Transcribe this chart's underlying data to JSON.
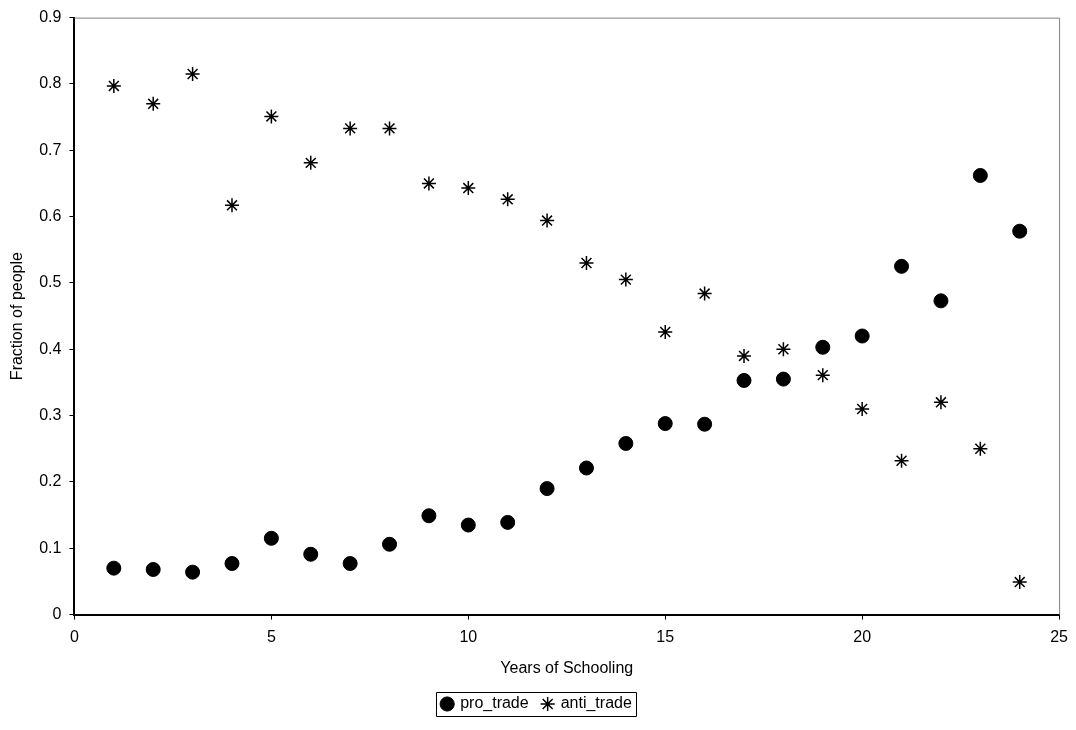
{
  "chart_data": {
    "type": "scatter",
    "xlabel": "Years of Schooling",
    "ylabel": "Fraction of people",
    "x": [
      1,
      2,
      3,
      4,
      5,
      6,
      7,
      8,
      9,
      10,
      11,
      12,
      13,
      14,
      15,
      16,
      17,
      18,
      19,
      20,
      21,
      22,
      23,
      24
    ],
    "series": [
      {
        "name": "pro_trade",
        "color": "#000000",
        "marker": "circle",
        "values": [
          0.07,
          0.068,
          0.064,
          0.077,
          0.115,
          0.091,
          0.077,
          0.106,
          0.149,
          0.135,
          0.139,
          0.19,
          0.221,
          0.258,
          0.288,
          0.287,
          0.353,
          0.355,
          0.403,
          0.42,
          0.525,
          0.473,
          0.662,
          0.578
        ]
      },
      {
        "name": "anti_trade",
        "color": "#000000",
        "marker": "cross",
        "values": [
          0.797,
          0.77,
          0.815,
          0.617,
          0.751,
          0.681,
          0.733,
          0.733,
          0.65,
          0.643,
          0.626,
          0.594,
          0.53,
          0.505,
          0.426,
          0.484,
          0.39,
          0.4,
          0.361,
          0.31,
          0.232,
          0.32,
          0.25,
          0.049
        ]
      }
    ],
    "xlim": [
      0,
      25
    ],
    "xticks": [
      0,
      5,
      10,
      15,
      20,
      25
    ],
    "ylim": [
      0,
      0.9
    ],
    "yticks": [
      0,
      0.1,
      0.2,
      0.3,
      0.4,
      0.5,
      0.6,
      0.7,
      0.8,
      0.9
    ],
    "grid": false,
    "legend": "bottom"
  }
}
